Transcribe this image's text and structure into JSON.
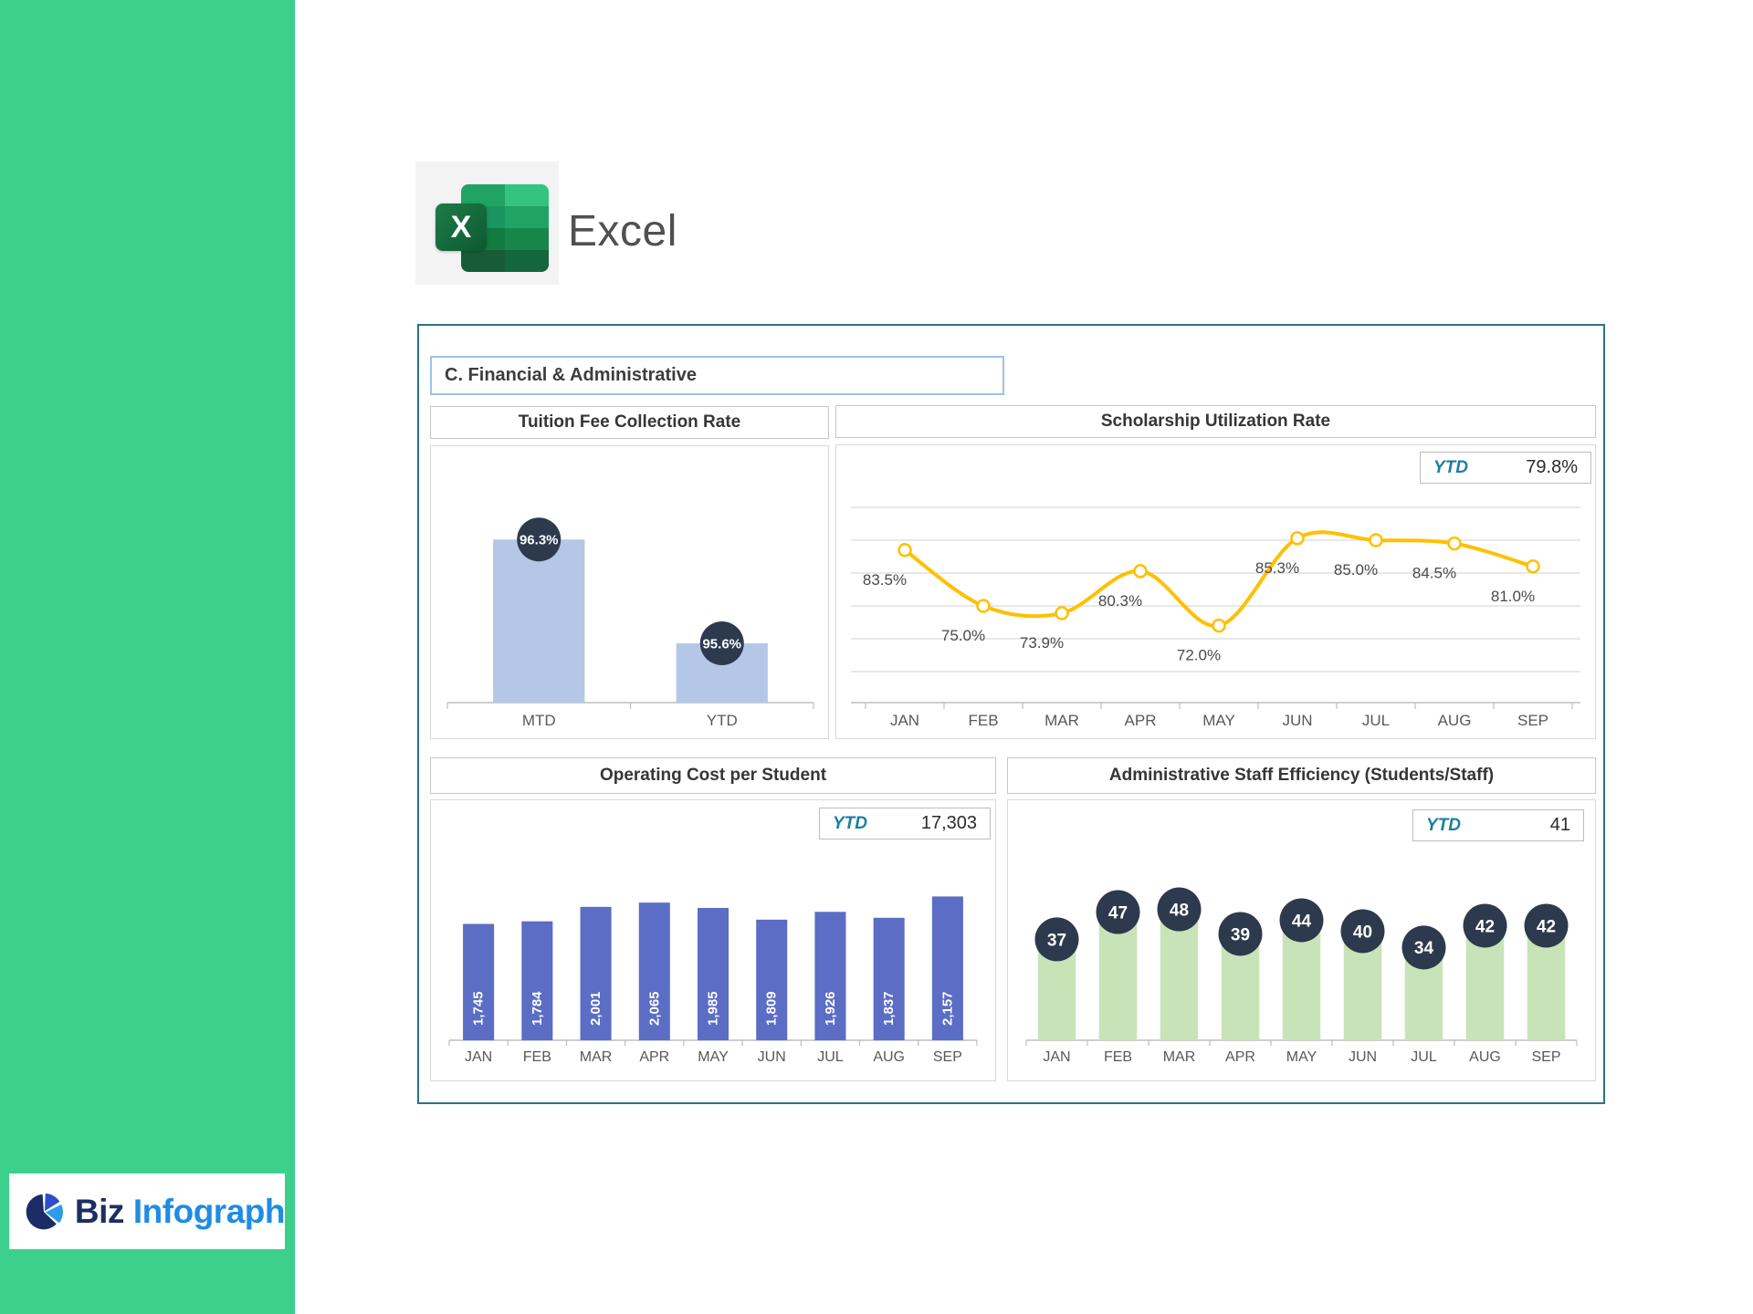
{
  "app": {
    "name": "Excel"
  },
  "brand": {
    "word1": "Biz",
    "word2": "Infograph"
  },
  "dashboard": {
    "section_title": "C. Financial & Administrative"
  },
  "colors": {
    "sidebar_green": "#3cd08c",
    "dashboard_border": "#2a7486",
    "header_border": "#9dc3e6",
    "ytd_teal": "#1b7f9e",
    "axis_gray": "#bfbfbf"
  },
  "chart_data": [
    {
      "id": "tuition",
      "type": "bar",
      "title": "Tuition Fee Collection Rate",
      "categories": [
        "MTD",
        "YTD"
      ],
      "values": [
        96.3,
        95.6
      ],
      "labels": [
        "96.3%",
        "95.6%"
      ],
      "ylim": [
        95.2,
        96.8
      ],
      "label_style": "badge",
      "bar_color": "#b4c7e7",
      "badge_color": "#2d3a4d",
      "grid": false,
      "legend": "none"
    },
    {
      "id": "scholarship",
      "type": "line",
      "title": "Scholarship Utilization Rate",
      "ytd_label": "YTD",
      "ytd_value": "79.8%",
      "categories": [
        "JAN",
        "FEB",
        "MAR",
        "APR",
        "MAY",
        "JUN",
        "JUL",
        "AUG",
        "SEP"
      ],
      "values": [
        83.5,
        75.0,
        73.9,
        80.3,
        72.0,
        85.3,
        85.0,
        84.5,
        81.0
      ],
      "labels": [
        "83.5%",
        "75.0%",
        "73.9%",
        "80.3%",
        "72.0%",
        "85.3%",
        "85.0%",
        "84.5%",
        "81.0%"
      ],
      "ylim": [
        65,
        90
      ],
      "gridlines": [
        65,
        70,
        75,
        80,
        85,
        90
      ],
      "line_color": "#ffc000",
      "marker_fill": "#ffffff",
      "grid": true,
      "legend": "none"
    },
    {
      "id": "operating",
      "type": "bar",
      "title": "Operating Cost per Student",
      "ytd_label": "YTD",
      "ytd_value": "17,303",
      "categories": [
        "JAN",
        "FEB",
        "MAR",
        "APR",
        "MAY",
        "JUN",
        "JUL",
        "AUG",
        "SEP"
      ],
      "values": [
        1745,
        1784,
        2001,
        2065,
        1985,
        1809,
        1926,
        1837,
        2157
      ],
      "labels": [
        "1,745",
        "1,784",
        "2,001",
        "2,065",
        "1,985",
        "1,809",
        "1,926",
        "1,837",
        "2,157"
      ],
      "ylim": [
        0,
        3600
      ],
      "label_style": "inside-rotated",
      "bar_color": "#5b6dc4",
      "grid": false,
      "legend": "none"
    },
    {
      "id": "admin",
      "type": "bar",
      "title": "Administrative Staff Efficiency (Students/Staff)",
      "ytd_label": "YTD",
      "ytd_value": "41",
      "categories": [
        "JAN",
        "FEB",
        "MAR",
        "APR",
        "MAY",
        "JUN",
        "JUL",
        "AUG",
        "SEP"
      ],
      "values": [
        37,
        47,
        48,
        39,
        44,
        40,
        34,
        42,
        42
      ],
      "labels": [
        "37",
        "47",
        "48",
        "39",
        "44",
        "40",
        "34",
        "42",
        "42"
      ],
      "ylim": [
        0,
        88
      ],
      "label_style": "badge",
      "bar_color": "#c9e3b8",
      "badge_color": "#2d3a4d",
      "grid": false,
      "legend": "none"
    }
  ]
}
